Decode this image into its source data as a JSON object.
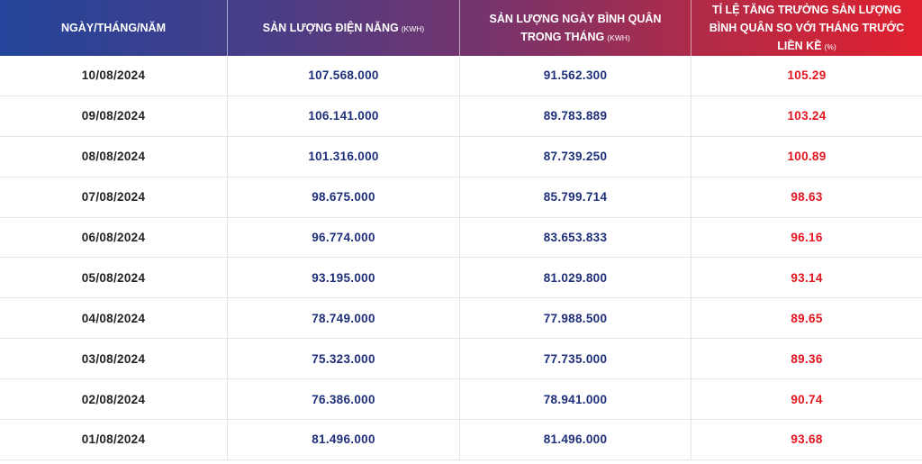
{
  "header": {
    "col1": "NGÀY/THÁNG/NĂM",
    "col2": "SẢN LƯỢNG ĐIỆN NĂNG",
    "col2_unit": "(KWH)",
    "col3": "SẢN LƯỢNG NGÀY BÌNH QUÂN TRONG THÁNG",
    "col3_unit": "(KWH)",
    "col4": "TỈ LỆ TĂNG TRƯỞNG SẢN LƯỢNG BÌNH QUÂN SO VỚI THÁNG TRƯỚC LIỀN KỀ",
    "col4_unit": "(%)"
  },
  "colors": {
    "accent_blue": "#1e2f7a",
    "accent_red": "#e3141f"
  },
  "rows": [
    {
      "date": "10/08/2024",
      "output": "107.568.000",
      "avg": "91.562.300",
      "rate": "105.29"
    },
    {
      "date": "09/08/2024",
      "output": "106.141.000",
      "avg": "89.783.889",
      "rate": "103.24"
    },
    {
      "date": "08/08/2024",
      "output": "101.316.000",
      "avg": "87.739.250",
      "rate": "100.89"
    },
    {
      "date": "07/08/2024",
      "output": "98.675.000",
      "avg": "85.799.714",
      "rate": "98.63"
    },
    {
      "date": "06/08/2024",
      "output": "96.774.000",
      "avg": "83.653.833",
      "rate": "96.16"
    },
    {
      "date": "05/08/2024",
      "output": "93.195.000",
      "avg": "81.029.800",
      "rate": "93.14"
    },
    {
      "date": "04/08/2024",
      "output": "78.749.000",
      "avg": "77.988.500",
      "rate": "89.65"
    },
    {
      "date": "03/08/2024",
      "output": "75.323.000",
      "avg": "77.735.000",
      "rate": "89.36"
    },
    {
      "date": "02/08/2024",
      "output": "76.386.000",
      "avg": "78.941.000",
      "rate": "90.74"
    },
    {
      "date": "01/08/2024",
      "output": "81.496.000",
      "avg": "81.496.000",
      "rate": "93.68"
    }
  ]
}
